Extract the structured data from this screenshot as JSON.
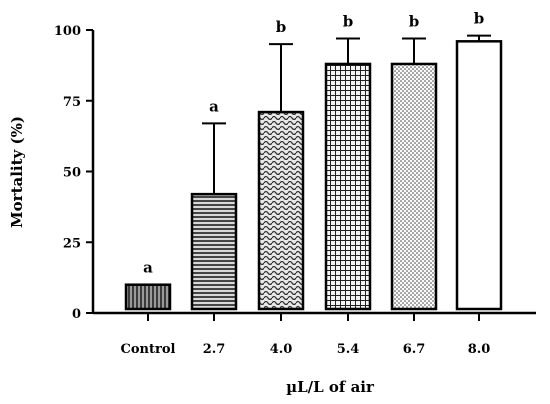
{
  "chart_data": {
    "type": "bar",
    "categories": [
      "Control",
      "2.7",
      "4.0",
      "5.4",
      "6.7",
      "8.0"
    ],
    "values": [
      10,
      42,
      71,
      88,
      88,
      96
    ],
    "error_upper": [
      10,
      67,
      95,
      97,
      97,
      98
    ],
    "significance": [
      "a",
      "a",
      "b",
      "b",
      "b",
      "b"
    ],
    "patterns": [
      "vertical-stripes",
      "horizontal-stripes",
      "wavy",
      "grid",
      "dots",
      "blank"
    ],
    "xlabel": "µL/L of air",
    "ylabel": "Mortality (%)",
    "yticks": [
      0,
      25,
      50,
      75,
      100
    ],
    "ylim": [
      0,
      100
    ],
    "grid": false,
    "colors": {
      "bar_stroke": "#000000",
      "pattern": "#444444",
      "background": "#ffffff"
    }
  }
}
